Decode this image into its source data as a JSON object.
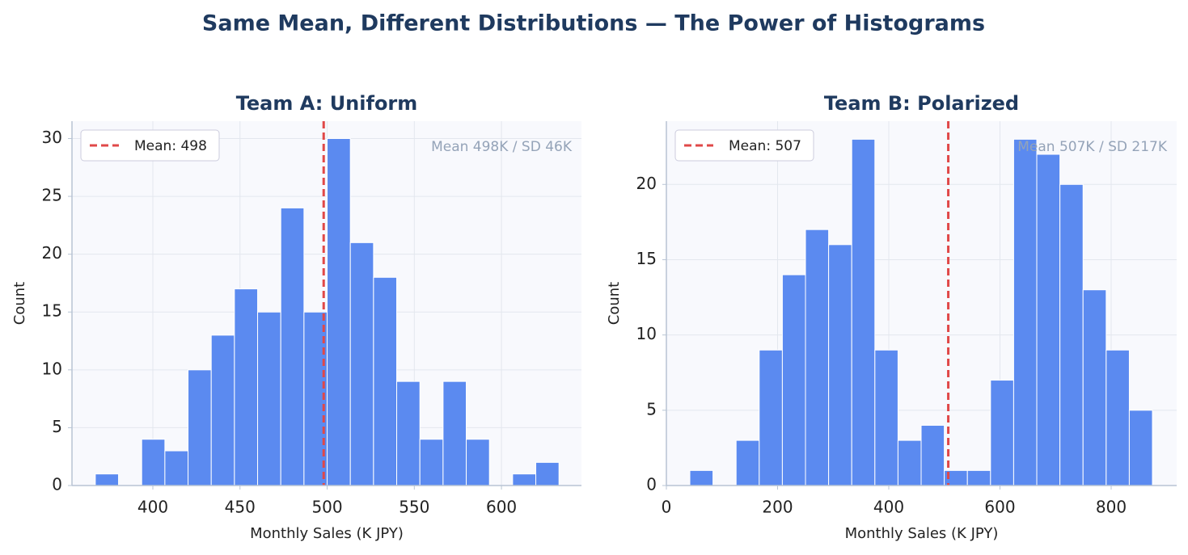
{
  "title": "Same Mean, Different Distributions — The Power of Histograms",
  "chart_data": [
    {
      "type": "histogram",
      "title": "Team A: Uniform",
      "xlabel": "Monthly Sales (K JPY)",
      "ylabel": "Count",
      "bins": [
        367.0,
        380.3,
        393.6,
        406.9,
        420.2,
        433.5,
        446.8,
        460.1,
        473.4,
        486.7,
        500.0,
        513.3,
        526.6,
        539.9,
        553.2,
        566.5,
        579.8,
        593.1,
        606.4,
        619.7,
        633.0
      ],
      "values": [
        1,
        0,
        4,
        3,
        10,
        13,
        17,
        15,
        24,
        15,
        30,
        21,
        18,
        9,
        4,
        9,
        4,
        0,
        1,
        2
      ],
      "color": "#5b8af0",
      "mean": {
        "value": 498,
        "label": "Mean: 498"
      },
      "mean_color": "#e04848",
      "annotation": "Mean 498K / SD 46K",
      "legend": "upper left",
      "grid": true,
      "xlim": [
        353.6,
        645.9
      ],
      "xticks": [
        400,
        450,
        500,
        550,
        600
      ],
      "ylim": [
        0,
        31.5
      ],
      "yticks": [
        0,
        5,
        10,
        15,
        20,
        25,
        30
      ]
    },
    {
      "type": "histogram",
      "title": "Team B: Polarized",
      "xlabel": "Monthly Sales (K JPY)",
      "ylabel": "Count",
      "bins": [
        42.2,
        83.8,
        125.4,
        167.0,
        208.6,
        250.2,
        291.8,
        333.4,
        375.0,
        416.6,
        458.2,
        499.8,
        541.4,
        583.0,
        624.6,
        666.2,
        707.8,
        749.4,
        791.0,
        832.6,
        874.2
      ],
      "values": [
        1,
        0,
        3,
        9,
        14,
        17,
        16,
        23,
        9,
        3,
        4,
        1,
        1,
        7,
        23,
        22,
        20,
        13,
        9,
        5
      ],
      "color": "#5b8af0",
      "mean": {
        "value": 507,
        "label": "Mean: 507"
      },
      "mean_color": "#e04848",
      "annotation": "Mean 507K / SD 217K",
      "legend": "upper left",
      "grid": true,
      "xlim": [
        0,
        917.8
      ],
      "xticks": [
        0,
        200,
        400,
        600,
        800
      ],
      "ylim": [
        0,
        24.2
      ],
      "yticks": [
        0,
        5,
        10,
        15,
        20
      ]
    }
  ]
}
